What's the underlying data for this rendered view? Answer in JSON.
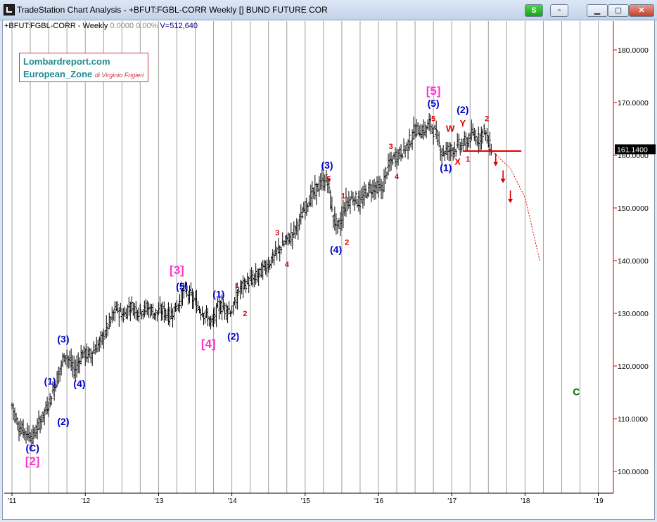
{
  "window": {
    "title": "TradeStation Chart Analysis - +BFUT:FGBL-CORR Weekly [] BUND FUTURE COR",
    "buttons": {
      "status": "S",
      "minimize": "▁",
      "maximize": "▢",
      "close": "✕",
      "dropdown": "▫"
    }
  },
  "info": {
    "symbol": "+BFUT:FGBL-CORR - Weekly",
    "change": "0.0000",
    "pct": "0.00%",
    "volume": "V=512,640"
  },
  "logo": {
    "line1": "Lombardreport.com",
    "line2": "European_Zone",
    "credit": "di Virginio Frigieri"
  },
  "colors": {
    "price_bars": "#000000",
    "grid": "#a0a0a0",
    "axis": "#cc0000",
    "wave_major": "#ff33cc",
    "wave_blue": "#0000cc",
    "wave_red": "#dd0000",
    "projection": "#dd0000",
    "label_c": "#007700"
  },
  "chart_data": {
    "type": "ohlc-bar",
    "x_ticks": [
      "'11",
      "'12",
      "'13",
      "'14",
      "'15",
      "'16",
      "'17",
      "'18",
      "'19"
    ],
    "y_ticks": [
      "100.0000",
      "110.0000",
      "120.0000",
      "130.0000",
      "140.0000",
      "150.0000",
      "160.0000",
      "170.0000",
      "180.0000"
    ],
    "ylim": [
      96,
      187
    ],
    "last_price": "161.1400",
    "close_path": [
      [
        2011.0,
        112.5
      ],
      [
        2011.08,
        108.5
      ],
      [
        2011.18,
        107.5
      ],
      [
        2011.28,
        106.5
      ],
      [
        2011.38,
        109.5
      ],
      [
        2011.5,
        113
      ],
      [
        2011.62,
        118
      ],
      [
        2011.72,
        122.5
      ],
      [
        2011.85,
        119
      ],
      [
        2011.95,
        122.5
      ],
      [
        2012.05,
        122
      ],
      [
        2012.2,
        124.5
      ],
      [
        2012.32,
        128
      ],
      [
        2012.42,
        131
      ],
      [
        2012.52,
        129.5
      ],
      [
        2012.6,
        131.5
      ],
      [
        2012.72,
        130.5
      ],
      [
        2012.85,
        131
      ],
      [
        2012.95,
        130
      ],
      [
        2013.05,
        130.5
      ],
      [
        2013.15,
        129.5
      ],
      [
        2013.25,
        131.5
      ],
      [
        2013.35,
        134.5
      ],
      [
        2013.45,
        133
      ],
      [
        2013.55,
        131
      ],
      [
        2013.65,
        129.5
      ],
      [
        2013.72,
        128
      ],
      [
        2013.82,
        131.5
      ],
      [
        2013.9,
        131
      ],
      [
        2014.0,
        130.5
      ],
      [
        2014.1,
        134.5
      ],
      [
        2014.2,
        136
      ],
      [
        2014.3,
        136.5
      ],
      [
        2014.4,
        138
      ],
      [
        2014.5,
        139.5
      ],
      [
        2014.6,
        141.5
      ],
      [
        2014.72,
        143.5
      ],
      [
        2014.82,
        145
      ],
      [
        2014.92,
        147.5
      ],
      [
        2015.02,
        151
      ],
      [
        2015.12,
        153
      ],
      [
        2015.2,
        154.5
      ],
      [
        2015.3,
        155.5
      ],
      [
        2015.37,
        148.5
      ],
      [
        2015.45,
        146
      ],
      [
        2015.55,
        151
      ],
      [
        2015.65,
        152
      ],
      [
        2015.75,
        151
      ],
      [
        2015.85,
        153.5
      ],
      [
        2015.95,
        154
      ],
      [
        2016.05,
        153.5
      ],
      [
        2016.1,
        157
      ],
      [
        2016.2,
        159.5
      ],
      [
        2016.3,
        160.5
      ],
      [
        2016.4,
        162
      ],
      [
        2016.5,
        165
      ],
      [
        2016.6,
        164.5
      ],
      [
        2016.7,
        166
      ],
      [
        2016.78,
        164
      ],
      [
        2016.86,
        160.5
      ],
      [
        2016.95,
        161
      ],
      [
        2017.05,
        161.5
      ],
      [
        2017.12,
        162
      ],
      [
        2017.2,
        162.5
      ],
      [
        2017.28,
        164
      ],
      [
        2017.36,
        163
      ],
      [
        2017.44,
        165
      ],
      [
        2017.5,
        162
      ],
      [
        2017.55,
        161.14
      ]
    ],
    "annotations": [
      {
        "text": "[2]",
        "x": 2011.28,
        "y": 101.2,
        "color": "#ff33cc",
        "size": 17
      },
      {
        "text": "(C)",
        "x": 2011.28,
        "y": 103.8,
        "color": "#0000cc",
        "size": 14
      },
      {
        "text": "(1)",
        "x": 2011.52,
        "y": 116.5,
        "color": "#0000cc",
        "size": 14
      },
      {
        "text": "(2)",
        "x": 2011.7,
        "y": 108.8,
        "color": "#0000cc",
        "size": 14
      },
      {
        "text": "(3)",
        "x": 2011.7,
        "y": 124.5,
        "color": "#0000cc",
        "size": 14
      },
      {
        "text": "(4)",
        "x": 2011.92,
        "y": 116,
        "color": "#0000cc",
        "size": 14
      },
      {
        "text": "[3]",
        "x": 2013.25,
        "y": 137.5,
        "color": "#ff33cc",
        "size": 17
      },
      {
        "text": "(5)",
        "x": 2013.32,
        "y": 134.5,
        "color": "#0000cc",
        "size": 14
      },
      {
        "text": "(1)",
        "x": 2013.82,
        "y": 133,
        "color": "#0000cc",
        "size": 14
      },
      {
        "text": "[4]",
        "x": 2013.68,
        "y": 123.5,
        "color": "#ff33cc",
        "size": 17
      },
      {
        "text": "(2)",
        "x": 2014.02,
        "y": 125,
        "color": "#0000cc",
        "size": 14
      },
      {
        "text": "1",
        "x": 2014.07,
        "y": 134.8,
        "color": "#dd0000",
        "size": 11
      },
      {
        "text": "2",
        "x": 2014.18,
        "y": 129.5,
        "color": "#dd0000",
        "size": 11
      },
      {
        "text": "3",
        "x": 2014.62,
        "y": 144.8,
        "color": "#dd0000",
        "size": 11
      },
      {
        "text": "4",
        "x": 2014.75,
        "y": 138.8,
        "color": "#dd0000",
        "size": 11
      },
      {
        "text": "(3)",
        "x": 2015.3,
        "y": 157.5,
        "color": "#0000cc",
        "size": 14
      },
      {
        "text": "5",
        "x": 2015.32,
        "y": 155,
        "color": "#dd0000",
        "size": 11
      },
      {
        "text": "1",
        "x": 2015.52,
        "y": 151.8,
        "color": "#dd0000",
        "size": 11
      },
      {
        "text": "(4)",
        "x": 2015.42,
        "y": 141.5,
        "color": "#0000cc",
        "size": 14
      },
      {
        "text": "2",
        "x": 2015.57,
        "y": 143,
        "color": "#dd0000",
        "size": 11
      },
      {
        "text": "3",
        "x": 2016.17,
        "y": 161.2,
        "color": "#dd0000",
        "size": 11
      },
      {
        "text": "4",
        "x": 2016.25,
        "y": 155.5,
        "color": "#dd0000",
        "size": 11
      },
      {
        "text": "[5]",
        "x": 2016.75,
        "y": 171.5,
        "color": "#ff33cc",
        "size": 17
      },
      {
        "text": "(5)",
        "x": 2016.75,
        "y": 169.2,
        "color": "#0000cc",
        "size": 14
      },
      {
        "text": "5",
        "x": 2016.75,
        "y": 166.5,
        "color": "#dd0000",
        "size": 11
      },
      {
        "text": "W",
        "x": 2016.98,
        "y": 164.5,
        "color": "#dd0000",
        "size": 13
      },
      {
        "text": "X",
        "x": 2017.08,
        "y": 158.2,
        "color": "#dd0000",
        "size": 13
      },
      {
        "text": "(1)",
        "x": 2016.92,
        "y": 157,
        "color": "#0000cc",
        "size": 14
      },
      {
        "text": "(2)",
        "x": 2017.15,
        "y": 168,
        "color": "#0000cc",
        "size": 14
      },
      {
        "text": "Y",
        "x": 2017.15,
        "y": 165.5,
        "color": "#dd0000",
        "size": 13
      },
      {
        "text": "1",
        "x": 2017.22,
        "y": 158.8,
        "color": "#dd0000",
        "size": 11
      },
      {
        "text": "2",
        "x": 2017.48,
        "y": 166.5,
        "color": "#dd0000",
        "size": 11
      },
      {
        "text": "C",
        "x": 2018.7,
        "y": 114.5,
        "color": "#007700",
        "size": 14
      }
    ],
    "support_line": {
      "x0": 2017.15,
      "x1": 2017.95,
      "y": 160.8
    },
    "projection": [
      [
        2017.55,
        160.8
      ],
      [
        2017.8,
        157.5
      ],
      [
        2018.0,
        152
      ],
      [
        2018.1,
        146
      ],
      [
        2018.2,
        140
      ]
    ],
    "arrows": [
      [
        2017.6,
        159
      ],
      [
        2017.7,
        155.8
      ],
      [
        2017.8,
        152
      ]
    ]
  }
}
